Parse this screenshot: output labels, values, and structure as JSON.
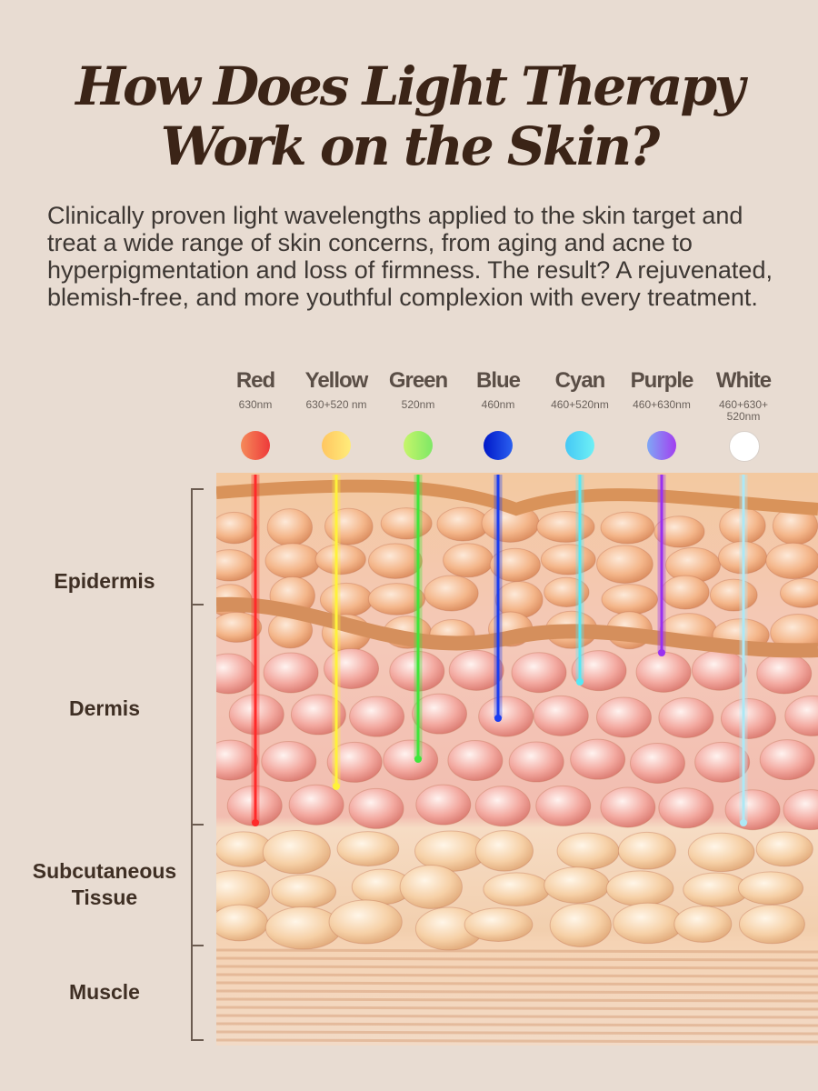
{
  "title": {
    "line1": "How Does Light Therapy",
    "line2": "Work on the Skin?"
  },
  "intro": "Clinically proven light wavelengths applied to the skin target and treat a wide range of skin concerns, from aging and acne to hyperpigmentation and loss of firmness. The result? A rejuvenated, blemish-free, and more youthful complexion with every treatment.",
  "lights": [
    {
      "name": "Red",
      "wavelength": "630nm",
      "color": "#f0443a",
      "penetrates_to": "subcutaneous boundary"
    },
    {
      "name": "Yellow",
      "wavelength": "630+520 nm",
      "color": "#ffe24a",
      "penetrates_to": "deep dermis"
    },
    {
      "name": "Green",
      "wavelength": "520nm",
      "color": "#5ee84a",
      "penetrates_to": "deep dermis"
    },
    {
      "name": "Blue",
      "wavelength": "460nm",
      "color": "#1030e0",
      "penetrates_to": "mid dermis"
    },
    {
      "name": "Cyan",
      "wavelength": "460+520nm",
      "color": "#5fe4f0",
      "penetrates_to": "upper dermis"
    },
    {
      "name": "Purple",
      "wavelength": "460+630nm",
      "color": "#9a3df0",
      "penetrates_to": "upper dermis"
    },
    {
      "name": "White",
      "wavelength": "460+630+ 520nm",
      "color": "#ffffff",
      "penetrates_to": "subcutaneous boundary"
    }
  ],
  "layers": [
    {
      "name": "Epidermis"
    },
    {
      "name": "Dermis"
    },
    {
      "name": "Subcutaneous Tissue",
      "line1": "Subcutaneous",
      "line2": "Tissue"
    },
    {
      "name": "Muscle"
    }
  ]
}
